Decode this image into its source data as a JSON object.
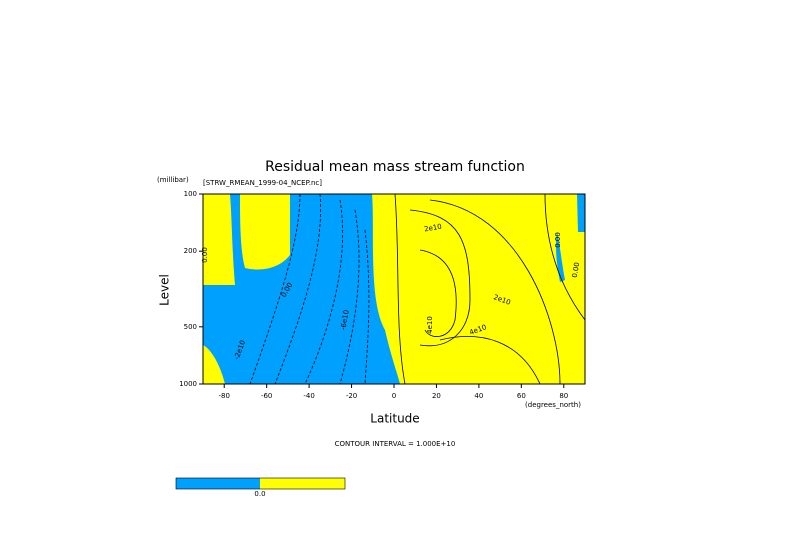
{
  "chart_data": {
    "type": "contour",
    "title": "Residual mean mass stream function",
    "subtitle": "[STRW_RMEAN_1999-04_NCEP.nc]",
    "y_unit": "(millibar)",
    "ylabel": "Level",
    "xlabel": "Latitude",
    "x_unit": "(degrees_north)",
    "note": "CONTOUR INTERVAL = 1.000E+10",
    "xlim": [
      -90,
      90
    ],
    "xticks": [
      -80,
      -60,
      -40,
      -20,
      0,
      20,
      40,
      60,
      80
    ],
    "ylim": [
      1000,
      100
    ],
    "yticks": [
      100,
      200,
      500,
      1000
    ],
    "ylog": true,
    "colors": {
      "negative": "#00a0ff",
      "positive": "#ffff00"
    },
    "contour_labels": [
      "0.00",
      "0.00",
      "-6e10",
      "-2e10",
      "2e10",
      "2e10",
      "4e10",
      "4e10",
      "0.00",
      "0.00"
    ],
    "colorbar_labels": [
      "0.0"
    ]
  }
}
